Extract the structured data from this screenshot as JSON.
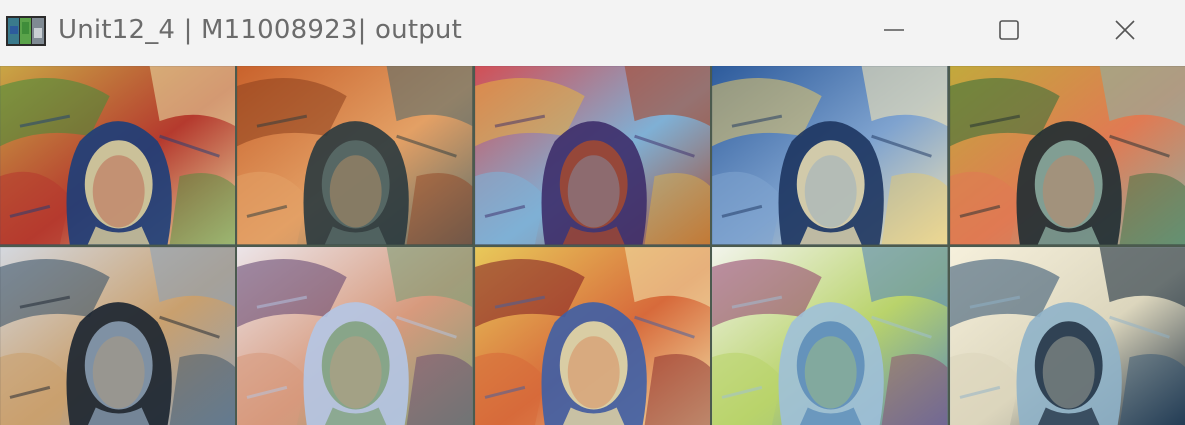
{
  "window": {
    "title": "Unit12_4 | M11008923| output",
    "app_icon": "opencv-window-icon",
    "controls": {
      "minimize": "minimize-icon",
      "maximize": "maximize-icon",
      "close": "close-icon"
    }
  },
  "tiles": [
    {
      "row": 1,
      "col": 1,
      "palette": [
        "#c9a645",
        "#3f8d3a",
        "#1c3e7a",
        "#b53a2e",
        "#e8d8a0"
      ]
    },
    {
      "row": 1,
      "col": 2,
      "palette": [
        "#c9622c",
        "#8d3f1e",
        "#2a3a3f",
        "#e3a065",
        "#5a6d6a"
      ]
    },
    {
      "row": 1,
      "col": 3,
      "palette": [
        "#d24f55",
        "#e7b43f",
        "#3d2d6a",
        "#7fb0d5",
        "#a54a2f"
      ]
    },
    {
      "row": 1,
      "col": 4,
      "palette": [
        "#2d5b9c",
        "#e8c968",
        "#1d3560",
        "#7fa3cf",
        "#f0e3b5"
      ]
    },
    {
      "row": 1,
      "col": 5,
      "palette": [
        "#c2a93c",
        "#2f6d3a",
        "#1f2d33",
        "#e07a53",
        "#8fb0a3"
      ]
    },
    {
      "row": 2,
      "col": 1,
      "palette": [
        "#d4d8df",
        "#2f4a62",
        "#1a2330",
        "#c9a06e",
        "#8ea2b7"
      ]
    },
    {
      "row": 2,
      "col": 2,
      "palette": [
        "#ece5e9",
        "#5e3f6e",
        "#b4c7e6",
        "#d79a7d",
        "#7fa07a"
      ]
    },
    {
      "row": 2,
      "col": 3,
      "palette": [
        "#e8c95a",
        "#7d1a23",
        "#3e5fa6",
        "#d76a3b",
        "#f2e0a6"
      ]
    },
    {
      "row": 2,
      "col": 4,
      "palette": [
        "#f2f4ec",
        "#8f3d6a",
        "#9fc0d9",
        "#b9d36b",
        "#5a8bb7"
      ]
    },
    {
      "row": 2,
      "col": 5,
      "palette": [
        "#f6f0dc",
        "#2b4e6f",
        "#8fb2c9",
        "#dcd6bd",
        "#1d2e40"
      ]
    }
  ]
}
